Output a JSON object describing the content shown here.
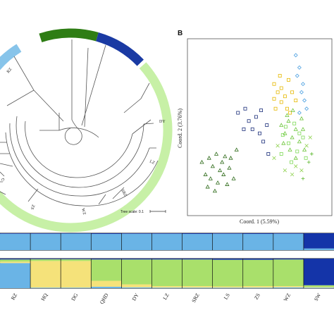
{
  "panel_label_b": "B",
  "tree": {
    "scale_text": "Tree scale: 0.1",
    "tip_labels": [
      "RZ",
      "DY",
      "LZ",
      "SRZ",
      "WZ",
      "ZS",
      "G"
    ],
    "colors": {
      "light_blue": "#87c4ea",
      "dark_green": "#2e7d14",
      "dark_blue": "#1a3aa3",
      "light_green": "#c7f0a6"
    }
  },
  "chart_data": [
    {
      "type": "scatter",
      "xlabel": "Coord. 1 (5.59%)",
      "ylabel": "Coord. 2 (3.76%)",
      "grid": false,
      "series": [
        {
          "marker": "triangle",
          "color": "#2f6b1a",
          "points": [
            [
              -0.8,
              -0.35
            ],
            [
              -0.75,
              -0.5
            ],
            [
              -0.7,
              -0.3
            ],
            [
              -0.68,
              -0.55
            ],
            [
              -0.65,
              -0.4
            ],
            [
              -0.6,
              -0.25
            ],
            [
              -0.58,
              -0.6
            ],
            [
              -0.55,
              -0.45
            ],
            [
              -0.52,
              -0.35
            ],
            [
              -0.5,
              -0.5
            ],
            [
              -0.48,
              -0.28
            ],
            [
              -0.45,
              -0.62
            ],
            [
              -0.42,
              -0.42
            ],
            [
              -0.4,
              -0.3
            ],
            [
              -0.36,
              -0.55
            ],
            [
              -0.32,
              -0.2
            ],
            [
              -0.72,
              -0.65
            ],
            [
              -0.62,
              -0.7
            ]
          ]
        },
        {
          "marker": "square",
          "color": "#1c2f7a",
          "points": [
            [
              -0.3,
              0.25
            ],
            [
              -0.2,
              0.3
            ],
            [
              -0.15,
              0.15
            ],
            [
              -0.1,
              0.05
            ],
            [
              -0.05,
              0.2
            ],
            [
              0.0,
              0.0
            ],
            [
              0.05,
              -0.1
            ],
            [
              0.1,
              0.1
            ],
            [
              -0.22,
              0.05
            ],
            [
              0.12,
              -0.25
            ],
            [
              0.02,
              0.28
            ]
          ]
        },
        {
          "marker": "square",
          "color": "#e6b800",
          "points": [
            [
              0.2,
              0.6
            ],
            [
              0.25,
              0.5
            ],
            [
              0.3,
              0.55
            ],
            [
              0.35,
              0.45
            ],
            [
              0.4,
              0.65
            ],
            [
              0.45,
              0.5
            ],
            [
              0.3,
              0.38
            ],
            [
              0.2,
              0.42
            ],
            [
              0.38,
              0.3
            ],
            [
              0.5,
              0.4
            ],
            [
              0.28,
              0.7
            ],
            [
              0.42,
              0.25
            ],
            [
              0.22,
              0.3
            ]
          ]
        },
        {
          "marker": "diamond",
          "color": "#4a9fe0",
          "points": [
            [
              0.5,
              0.95
            ],
            [
              0.55,
              0.8
            ],
            [
              0.6,
              0.6
            ],
            [
              0.62,
              0.4
            ],
            [
              0.55,
              0.25
            ],
            [
              0.65,
              0.3
            ],
            [
              0.58,
              0.5
            ],
            [
              0.52,
              0.7
            ]
          ]
        },
        {
          "marker": "triangle",
          "color": "#6cc43a",
          "points": [
            [
              0.3,
              0.1
            ],
            [
              0.35,
              0.0
            ],
            [
              0.4,
              0.15
            ],
            [
              0.45,
              -0.05
            ],
            [
              0.5,
              0.05
            ],
            [
              0.55,
              -0.1
            ],
            [
              0.6,
              0.05
            ],
            [
              0.42,
              -0.2
            ],
            [
              0.38,
              0.22
            ],
            [
              0.62,
              -0.2
            ],
            [
              0.5,
              -0.3
            ],
            [
              0.33,
              -0.12
            ],
            [
              0.58,
              0.18
            ],
            [
              0.46,
              0.28
            ]
          ]
        },
        {
          "marker": "square",
          "color": "#7ed957",
          "points": [
            [
              0.32,
              -0.02
            ],
            [
              0.4,
              -0.12
            ],
            [
              0.48,
              0.12
            ],
            [
              0.55,
              0.0
            ],
            [
              0.6,
              -0.05
            ],
            [
              0.44,
              -0.35
            ],
            [
              0.36,
              0.08
            ],
            [
              0.52,
              -0.22
            ],
            [
              0.64,
              -0.3
            ],
            [
              0.3,
              -0.25
            ]
          ]
        },
        {
          "marker": "x",
          "color": "#8fd14f",
          "points": [
            [
              0.2,
              -0.3
            ],
            [
              0.35,
              -0.45
            ],
            [
              0.5,
              -0.4
            ],
            [
              0.65,
              -0.15
            ],
            [
              0.7,
              -0.05
            ],
            [
              0.45,
              -0.5
            ],
            [
              0.58,
              -0.45
            ],
            [
              0.25,
              -0.15
            ]
          ]
        },
        {
          "marker": "plus",
          "color": "#5cb82e",
          "points": [
            [
              0.68,
              -0.35
            ],
            [
              0.6,
              -0.55
            ],
            [
              0.72,
              -0.25
            ]
          ]
        }
      ]
    },
    {
      "type": "bar",
      "stacked": true,
      "groups": [
        "RZ",
        "HQ",
        "DG",
        "QHD",
        "DY",
        "LZ",
        "SRZ",
        "LS",
        "ZS",
        "WZ",
        "SW"
      ],
      "series": [
        {
          "color": "#6ab4e6",
          "values": [
            0.97,
            0.97,
            0.98,
            0.96,
            0.97,
            0.97,
            0.96,
            0.97,
            0.96,
            0.97,
            0.1
          ]
        },
        {
          "color": "#1434a8",
          "values": [
            0.03,
            0.03,
            0.02,
            0.04,
            0.03,
            0.03,
            0.04,
            0.03,
            0.04,
            0.03,
            0.9
          ]
        }
      ]
    },
    {
      "type": "bar",
      "stacked": true,
      "groups": [
        "RZ",
        "HQ",
        "DG",
        "QHD",
        "DY",
        "LZ",
        "SRZ",
        "LS",
        "ZS",
        "WZ",
        "SW"
      ],
      "series": [
        {
          "color": "#6ab4e6",
          "values": [
            0.85,
            0.02,
            0.02,
            0.05,
            0.03,
            0.02,
            0.02,
            0.02,
            0.02,
            0.03,
            0.02
          ]
        },
        {
          "color": "#f5e27a",
          "values": [
            0.05,
            0.9,
            0.9,
            0.2,
            0.1,
            0.05,
            0.05,
            0.04,
            0.05,
            0.04,
            0.02
          ]
        },
        {
          "color": "#a9e06b",
          "values": [
            0.07,
            0.06,
            0.06,
            0.72,
            0.84,
            0.9,
            0.9,
            0.9,
            0.89,
            0.9,
            0.06
          ]
        },
        {
          "color": "#1434a8",
          "values": [
            0.03,
            0.02,
            0.02,
            0.03,
            0.03,
            0.03,
            0.03,
            0.04,
            0.04,
            0.03,
            0.9
          ]
        }
      ]
    }
  ]
}
